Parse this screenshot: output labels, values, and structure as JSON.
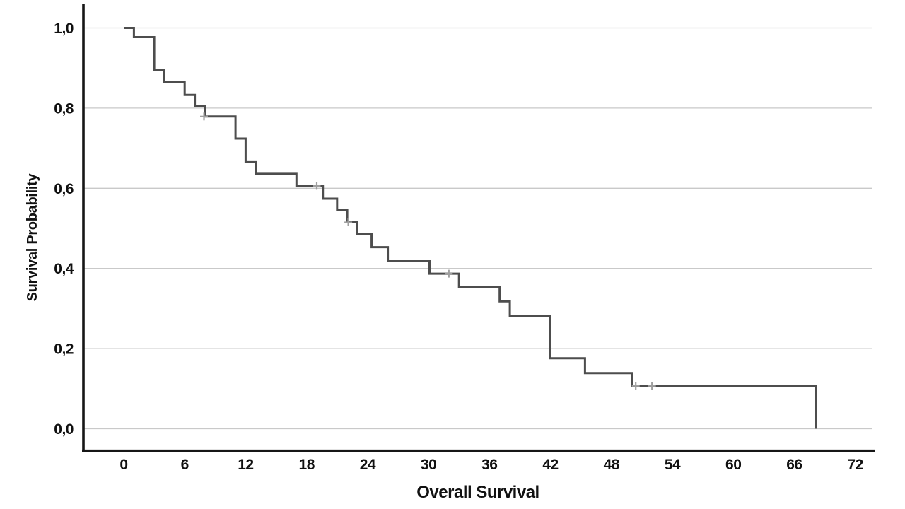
{
  "colors": {
    "background": "#ffffff",
    "axis": "#161616",
    "grid": "#c9c9c9",
    "curve": "#4d4d4d",
    "censor": "#9f9f9f",
    "text": "#111111"
  },
  "chart_data": {
    "type": "line",
    "subtype": "kaplan-meier-step",
    "title": "",
    "xlabel": "Overall Survival",
    "ylabel": "Survival Probability",
    "xlim": [
      0,
      72
    ],
    "ylim": [
      0.0,
      1.0
    ],
    "x_ticks": [
      0,
      6,
      12,
      18,
      24,
      30,
      36,
      42,
      48,
      54,
      60,
      66,
      72
    ],
    "y_ticks": [
      {
        "label": "0,0",
        "value": 0.0
      },
      {
        "label": "0,2",
        "value": 0.2
      },
      {
        "label": "0,4",
        "value": 0.4
      },
      {
        "label": "0,6",
        "value": 0.6
      },
      {
        "label": "0,8",
        "value": 0.8
      },
      {
        "label": "1,0",
        "value": 1.0
      }
    ],
    "grid": "horizontal-only",
    "legend": "none",
    "decimal_separator": ",",
    "series": [
      {
        "name": "Overall Survival",
        "style": "step-post",
        "points": [
          [
            0,
            1.0
          ],
          [
            1,
            0.977
          ],
          [
            3,
            0.895
          ],
          [
            4,
            0.865
          ],
          [
            6,
            0.833
          ],
          [
            7,
            0.805
          ],
          [
            8,
            0.779
          ],
          [
            11,
            0.724
          ],
          [
            12,
            0.665
          ],
          [
            13,
            0.636
          ],
          [
            17,
            0.606
          ],
          [
            19.6,
            0.574
          ],
          [
            21,
            0.545
          ],
          [
            22,
            0.515
          ],
          [
            23,
            0.486
          ],
          [
            24.4,
            0.453
          ],
          [
            26,
            0.418
          ],
          [
            30.1,
            0.387
          ],
          [
            33,
            0.353
          ],
          [
            37,
            0.318
          ],
          [
            38,
            0.281
          ],
          [
            42,
            0.176
          ],
          [
            45.4,
            0.139
          ],
          [
            50,
            0.107
          ],
          [
            68.1,
            0.0
          ]
        ]
      }
    ],
    "censored_points": [
      [
        7.9,
        0.779
      ],
      [
        19.0,
        0.606
      ],
      [
        22.1,
        0.515
      ],
      [
        32.0,
        0.387
      ],
      [
        50.4,
        0.107
      ],
      [
        52.0,
        0.107
      ]
    ]
  }
}
